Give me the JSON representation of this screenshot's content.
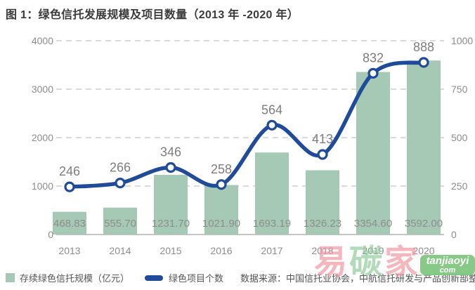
{
  "title": "图 1：绿色信托发展规模及项目数量（2013 年 -2020 年）",
  "chart_data": {
    "type": "combo-bar-line",
    "title": "图 1：绿色信托发展规模及项目数量（2013 年 -2020 年）",
    "categories": [
      "2013",
      "2014",
      "2015",
      "2016",
      "2017",
      "2018",
      "2019",
      "2020"
    ],
    "series": [
      {
        "name": "存续绿色信托规模（亿元）",
        "type": "bar",
        "axis": "left",
        "color": "#a5c9b5",
        "values": [
          468.83,
          555.7,
          1231.7,
          1021.9,
          1693.19,
          1326.23,
          3354.6,
          3592.0
        ],
        "value_labels": [
          "468.83",
          "555.70",
          "1231.70",
          "1021.90",
          "1693.19",
          "1326.23",
          "3354.60",
          "3592.00"
        ]
      },
      {
        "name": "绿色项目个数",
        "type": "line",
        "axis": "right",
        "color": "#1f4b9a",
        "values": [
          246,
          266,
          346,
          258,
          564,
          413,
          832,
          888
        ],
        "value_labels": [
          "246",
          "266",
          "346",
          "258",
          "564",
          "413",
          "832",
          "888"
        ]
      }
    ],
    "left_axis": {
      "ticks": [
        0,
        1000,
        2000,
        3000,
        4000
      ],
      "range": [
        0,
        4000
      ]
    },
    "right_axis": {
      "ticks": [
        0,
        250,
        500,
        750,
        1000
      ],
      "range": [
        0,
        1000
      ]
    },
    "grid": "horizontal-dashed",
    "legend_position": "bottom-left"
  },
  "legend": {
    "bar_label": "存续绿色信托规模（亿元）",
    "line_label": "绿色项目个数",
    "source": "数据来源：中国信托业协会，中航信托研发与产品创新部整理"
  },
  "watermark": {
    "char1": "易",
    "char2": "碳",
    "char3": "家",
    "badge_line1": "tanjiaoyi",
    "badge_line2": "com"
  },
  "colors": {
    "bar": "#a5c9b5",
    "line": "#1f4b9a",
    "axis_text": "#8d8d8d",
    "value_text": "#7e7e7e",
    "grid": "#c4c4c4",
    "axis_line": "#b3b3b3",
    "watermark_pink": "#ef96a0",
    "watermark_green": "#8ecb99",
    "watermark_badge": "#7ec57e"
  }
}
